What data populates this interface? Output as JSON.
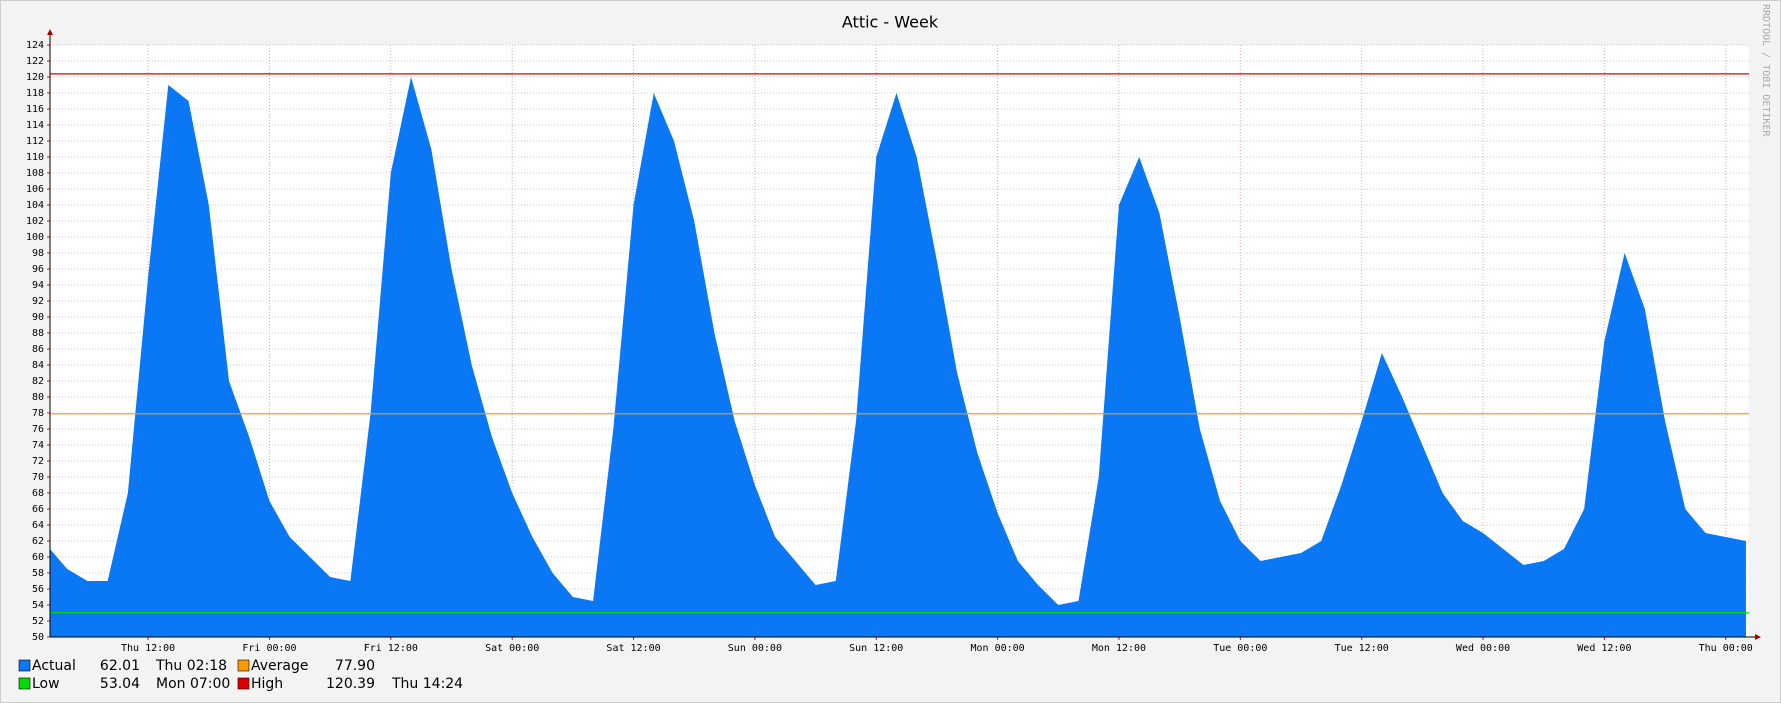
{
  "chart_data": {
    "type": "area",
    "title": "Attic - Week",
    "watermark": "RRDTOOL / TOBI OETIKER",
    "x": [
      "Thu 02:18",
      "Thu 04:00",
      "Thu 06:00",
      "Thu 08:00",
      "Thu 10:00",
      "Thu 12:00",
      "Thu 14:00",
      "Thu 16:00",
      "Thu 18:00",
      "Thu 20:00",
      "Thu 22:00",
      "Fri 00:00",
      "Fri 02:00",
      "Fri 04:00",
      "Fri 06:00",
      "Fri 08:00",
      "Fri 10:00",
      "Fri 12:00",
      "Fri 14:00",
      "Fri 16:00",
      "Fri 18:00",
      "Fri 20:00",
      "Fri 22:00",
      "Sat 00:00",
      "Sat 02:00",
      "Sat 04:00",
      "Sat 06:00",
      "Sat 08:00",
      "Sat 10:00",
      "Sat 12:00",
      "Sat 14:00",
      "Sat 16:00",
      "Sat 18:00",
      "Sat 20:00",
      "Sat 22:00",
      "Sun 00:00",
      "Sun 02:00",
      "Sun 04:00",
      "Sun 06:00",
      "Sun 08:00",
      "Sun 10:00",
      "Sun 12:00",
      "Sun 14:00",
      "Sun 16:00",
      "Sun 18:00",
      "Sun 20:00",
      "Sun 22:00",
      "Mon 00:00",
      "Mon 02:00",
      "Mon 04:00",
      "Mon 06:00",
      "Mon 08:00",
      "Mon 10:00",
      "Mon 12:00",
      "Mon 14:00",
      "Mon 16:00",
      "Mon 18:00",
      "Mon 20:00",
      "Mon 22:00",
      "Tue 00:00",
      "Tue 02:00",
      "Tue 04:00",
      "Tue 06:00",
      "Tue 08:00",
      "Tue 10:00",
      "Tue 12:00",
      "Tue 14:00",
      "Tue 16:00",
      "Tue 18:00",
      "Tue 20:00",
      "Tue 22:00",
      "Wed 00:00",
      "Wed 02:00",
      "Wed 04:00",
      "Wed 06:00",
      "Wed 08:00",
      "Wed 10:00",
      "Wed 12:00",
      "Wed 14:00",
      "Wed 16:00",
      "Wed 18:00",
      "Wed 20:00",
      "Wed 22:00",
      "Thu 00:00",
      "Thu 02:00"
    ],
    "series": [
      {
        "name": "Actual",
        "color": "#0a78f5",
        "stat": 62.01,
        "stat_time": "Thu 02:18",
        "values": [
          61,
          58.5,
          57,
          57,
          68,
          95,
          119,
          117,
          104,
          82,
          75,
          67,
          62.5,
          60,
          57.5,
          57,
          78,
          108,
          120,
          111,
          96,
          84,
          75,
          68,
          62.5,
          58,
          55,
          54.5,
          76,
          104,
          118,
          112,
          102,
          88,
          77,
          69,
          62.5,
          59.5,
          56.5,
          57,
          77,
          110,
          118,
          110,
          97,
          83,
          73,
          65.5,
          59.5,
          56.5,
          54,
          54.5,
          70,
          104,
          110,
          103,
          90,
          76,
          67,
          62,
          59.5,
          60,
          60.5,
          62,
          69,
          77,
          85.5,
          80,
          74,
          68,
          64.5,
          63,
          61,
          59,
          59.5,
          61,
          66,
          87,
          98,
          91,
          77,
          66,
          63,
          62.5,
          62
        ]
      }
    ],
    "reference_lines": [
      {
        "name": "Average",
        "color": "#ff9900",
        "value": 77.9,
        "value_label": "77.90"
      },
      {
        "name": "Low",
        "color": "#00dd00",
        "value": 53.04,
        "time": "Mon 07:00"
      },
      {
        "name": "High",
        "color": "#dd0000",
        "value": 120.39,
        "time": "Thu 14:24"
      }
    ],
    "xlim": [
      "Thu 02:18",
      "Thu 02:18"
    ],
    "xticks": [
      "Thu 12:00",
      "Fri 00:00",
      "Fri 12:00",
      "Sat 00:00",
      "Sat 12:00",
      "Sun 00:00",
      "Sun 12:00",
      "Mon 00:00",
      "Mon 12:00",
      "Tue 00:00",
      "Tue 12:00",
      "Wed 00:00",
      "Wed 12:00",
      "Thu 00:00"
    ],
    "ylim": [
      50,
      124
    ],
    "yticks": [
      50,
      52,
      54,
      56,
      58,
      60,
      62,
      64,
      66,
      68,
      70,
      72,
      74,
      76,
      78,
      80,
      82,
      84,
      86,
      88,
      90,
      92,
      94,
      96,
      98,
      100,
      102,
      104,
      106,
      108,
      110,
      112,
      114,
      116,
      118,
      120,
      122,
      124
    ],
    "grid": true
  }
}
